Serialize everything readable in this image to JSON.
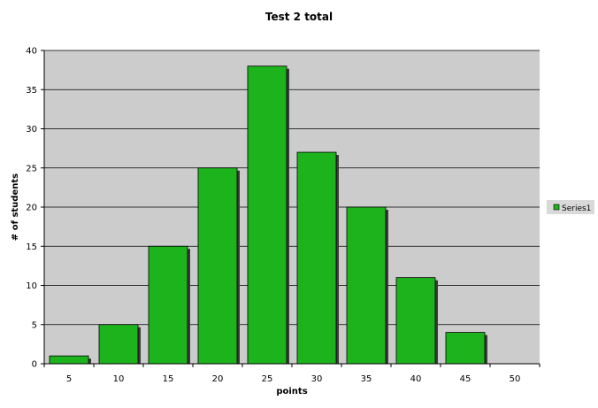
{
  "chart_data": {
    "type": "bar",
    "title": "Test 2 total",
    "xlabel": "points",
    "ylabel": "# of students",
    "categories": [
      "5",
      "10",
      "15",
      "20",
      "25",
      "30",
      "35",
      "40",
      "45",
      "50"
    ],
    "series": [
      {
        "name": "Series1",
        "values": [
          1,
          5,
          15,
          25,
          38,
          27,
          20,
          11,
          4,
          0
        ]
      }
    ],
    "ylim": [
      0,
      40
    ],
    "yticks": [
      "0",
      "5",
      "10",
      "15",
      "20",
      "25",
      "30",
      "35",
      "40"
    ],
    "grid": true,
    "legend_position": "right",
    "colors": {
      "bar": "#1db31d",
      "bar_shadow": "#3a3a3a",
      "plot_background": "#cccccc",
      "gridline": "#000000",
      "legend_background": "#d9d9d9"
    }
  }
}
